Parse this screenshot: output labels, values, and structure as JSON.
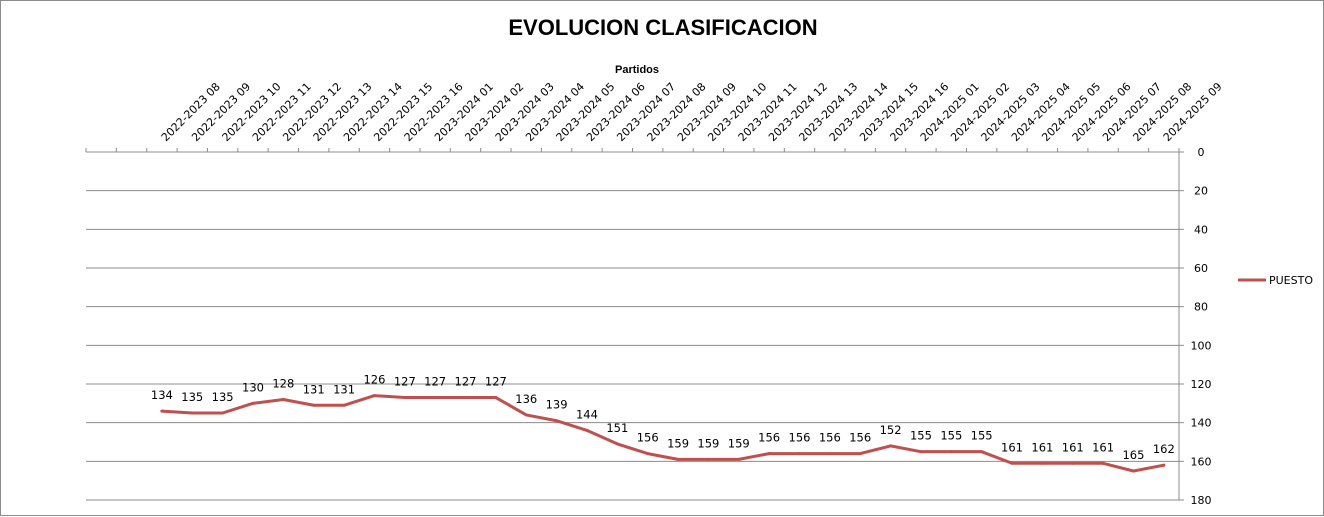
{
  "chart_data": {
    "type": "line",
    "title": "EVOLUCION CLASIFICACION",
    "xlabel": "Partidos",
    "ylabel": "",
    "ylim": [
      0,
      180
    ],
    "y_ticks": [
      0,
      20,
      40,
      60,
      80,
      100,
      120,
      140,
      160,
      180
    ],
    "y_reversed": true,
    "y_axis_position": "right",
    "x_axis_position": "top",
    "grid": true,
    "legend_position": "right",
    "colors": {
      "series": "#c0504d",
      "grid": "#8c8c8c",
      "axis": "#8c8c8c"
    },
    "categories": [
      "2022-2023 08",
      "2022-2023 09",
      "2022-2023 10",
      "2022-2023 11",
      "2022-2023 12",
      "2022-2023 13",
      "2022-2023 14",
      "2022-2023 15",
      "2022-2023 16",
      "2023-2024 01",
      "2023-2024 02",
      "2023-2024 03",
      "2023-2024 04",
      "2023-2024 05",
      "2023-2024 06",
      "2023-2024 07",
      "2023-2024 08",
      "2023-2024 09",
      "2023-2024 10",
      "2023-2024 11",
      "2023-2024 12",
      "2023-2024 13",
      "2023-2024 14",
      "2023-2024 15",
      "2023-2024 16",
      "2024-2025 01",
      "2024-2025 02",
      "2024-2025 03",
      "2024-2025 04",
      "2024-2025 05",
      "2024-2025 06",
      "2024-2025 07",
      "2024-2025 08",
      "2024-2025 09"
    ],
    "series": [
      {
        "name": "PUESTO",
        "values": [
          134,
          135,
          135,
          130,
          128,
          131,
          131,
          126,
          127,
          127,
          127,
          127,
          136,
          139,
          144,
          151,
          156,
          159,
          159,
          159,
          156,
          156,
          156,
          156,
          152,
          155,
          155,
          155,
          161,
          161,
          161,
          161,
          165,
          162
        ]
      }
    ]
  }
}
